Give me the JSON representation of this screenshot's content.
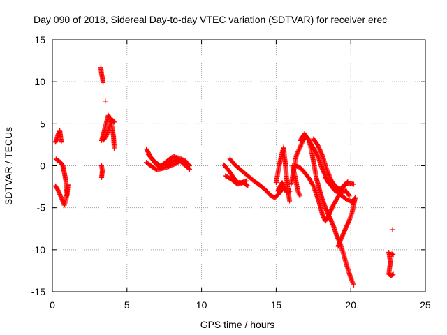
{
  "chart_data": {
    "type": "scatter",
    "title": "Day 090 of 2018, Sidereal Day-to-day VTEC variation (SDTVAR) for receiver erec",
    "xlabel": "GPS time / hours",
    "ylabel": "SDTVAR / TECUs",
    "xlim": [
      0,
      25
    ],
    "ylim": [
      -15,
      15
    ],
    "xticks": [
      0,
      5,
      10,
      15,
      20,
      25
    ],
    "yticks": [
      -15,
      -10,
      -5,
      0,
      5,
      10,
      15
    ],
    "grid": true,
    "marker": "plus",
    "marker_color": "#ff0000",
    "series": [
      {
        "name": "SDTVAR",
        "tracks": [
          [
            [
              0.2,
              2.8
            ],
            [
              0.3,
              3.2
            ],
            [
              0.4,
              3.8
            ],
            [
              0.5,
              4.2
            ],
            [
              0.55,
              3.5
            ],
            [
              0.6,
              2.8
            ]
          ],
          [
            [
              0.25,
              0.8
            ],
            [
              0.4,
              0.6
            ],
            [
              0.55,
              0.4
            ],
            [
              0.7,
              0.0
            ],
            [
              0.8,
              -0.8
            ],
            [
              0.9,
              -1.8
            ],
            [
              0.95,
              -2.8
            ],
            [
              1.0,
              -3.5
            ]
          ],
          [
            [
              0.2,
              -2.4
            ],
            [
              0.35,
              -2.8
            ],
            [
              0.5,
              -3.4
            ],
            [
              0.65,
              -4.0
            ],
            [
              0.8,
              -4.7
            ],
            [
              0.9,
              -4.2
            ],
            [
              1.0,
              -3.2
            ],
            [
              1.05,
              -2.2
            ]
          ],
          [
            [
              3.25,
              11.7
            ],
            [
              3.3,
              10.9
            ],
            [
              3.35,
              10.5
            ],
            [
              3.4,
              9.9
            ]
          ],
          [
            [
              3.3,
              3.0
            ],
            [
              3.45,
              4.0
            ],
            [
              3.6,
              5.0
            ],
            [
              3.75,
              6.0
            ],
            [
              3.9,
              5.5
            ],
            [
              4.0,
              4.6
            ],
            [
              4.1,
              3.5
            ],
            [
              4.15,
              2.0
            ]
          ],
          [
            [
              3.4,
              3.0
            ],
            [
              3.6,
              3.5
            ],
            [
              3.8,
              4.5
            ],
            [
              4.0,
              5.5
            ],
            [
              4.15,
              5.2
            ]
          ],
          [
            [
              3.3,
              0.0
            ],
            [
              3.35,
              -0.6
            ],
            [
              3.3,
              -1.4
            ]
          ],
          [
            [
              3.55,
              7.7
            ]
          ],
          [
            [
              6.3,
              2.0
            ],
            [
              6.6,
              1.0
            ],
            [
              6.9,
              0.3
            ],
            [
              7.2,
              -0.2
            ],
            [
              7.5,
              0.3
            ],
            [
              7.8,
              0.7
            ],
            [
              8.1,
              1.1
            ],
            [
              8.5,
              0.9
            ],
            [
              8.9,
              0.6
            ],
            [
              9.2,
              0.0
            ]
          ],
          [
            [
              6.3,
              0.4
            ],
            [
              6.6,
              0.0
            ],
            [
              7.0,
              -0.5
            ],
            [
              7.4,
              -0.3
            ],
            [
              7.8,
              -0.1
            ],
            [
              8.2,
              0.2
            ],
            [
              8.6,
              0.6
            ],
            [
              9.0,
              0.4
            ]
          ],
          [
            [
              6.4,
              1.4
            ],
            [
              6.8,
              0.6
            ],
            [
              7.2,
              0.0
            ],
            [
              7.6,
              0.0
            ],
            [
              8.0,
              0.5
            ],
            [
              8.4,
              0.8
            ],
            [
              8.8,
              0.2
            ],
            [
              9.2,
              -0.4
            ]
          ],
          [
            [
              11.5,
              0.1
            ],
            [
              11.8,
              -0.5
            ],
            [
              12.1,
              -1.3
            ],
            [
              12.4,
              -2.0
            ],
            [
              12.7,
              -2.0
            ],
            [
              13.0,
              -1.8
            ]
          ],
          [
            [
              11.6,
              -1.2
            ],
            [
              12.0,
              -1.6
            ],
            [
              12.4,
              -2.2
            ],
            [
              12.8,
              -2.0
            ],
            [
              13.1,
              -2.4
            ]
          ],
          [
            [
              11.9,
              0.8
            ],
            [
              12.3,
              0.0
            ],
            [
              12.7,
              -0.6
            ],
            [
              13.1,
              -1.2
            ],
            [
              13.5,
              -1.8
            ],
            [
              13.9,
              -2.3
            ],
            [
              14.3,
              -2.9
            ],
            [
              14.6,
              -3.5
            ],
            [
              14.9,
              -3.8
            ],
            [
              15.2,
              -3.3
            ],
            [
              15.5,
              -2.6
            ]
          ],
          [
            [
              15.0,
              -2.0
            ],
            [
              15.2,
              0.0
            ],
            [
              15.35,
              1.2
            ],
            [
              15.5,
              2.2
            ],
            [
              15.6,
              0.5
            ],
            [
              15.7,
              -1.5
            ],
            [
              15.8,
              -3.0
            ],
            [
              15.9,
              -4.2
            ]
          ],
          [
            [
              15.1,
              -3.0
            ],
            [
              15.4,
              -2.0
            ],
            [
              15.7,
              -3.2
            ],
            [
              15.95,
              -3.0
            ]
          ],
          [
            [
              16.0,
              -2.2
            ],
            [
              16.15,
              -0.8
            ],
            [
              16.35,
              1.2
            ],
            [
              16.55,
              2.0
            ],
            [
              16.75,
              2.8
            ],
            [
              16.95,
              3.5
            ],
            [
              17.15,
              3.2
            ],
            [
              17.35,
              2.5
            ],
            [
              17.6,
              1.8
            ],
            [
              17.85,
              0.9
            ],
            [
              18.05,
              -0.2
            ],
            [
              18.25,
              -1.0
            ],
            [
              18.5,
              -2.0
            ],
            [
              18.8,
              -2.5
            ],
            [
              19.1,
              -2.8
            ],
            [
              19.4,
              -3.1
            ],
            [
              19.7,
              -3.0
            ],
            [
              19.9,
              -3.6
            ]
          ],
          [
            [
              16.6,
              3.0
            ],
            [
              16.9,
              3.8
            ],
            [
              17.2,
              3.0
            ],
            [
              17.4,
              1.5
            ],
            [
              17.55,
              0.0
            ],
            [
              17.7,
              -1.5
            ],
            [
              17.9,
              -2.8
            ],
            [
              18.1,
              -4.0
            ],
            [
              18.35,
              -5.2
            ],
            [
              18.6,
              -6.2
            ],
            [
              18.85,
              -7.2
            ],
            [
              19.05,
              -8.3
            ],
            [
              19.3,
              -9.3
            ],
            [
              19.5,
              -10.4
            ],
            [
              19.7,
              -11.7
            ],
            [
              19.9,
              -12.8
            ],
            [
              20.05,
              -13.6
            ],
            [
              20.2,
              -14.2
            ]
          ],
          [
            [
              17.5,
              3.2
            ],
            [
              17.8,
              2.4
            ],
            [
              18.1,
              1.2
            ],
            [
              18.4,
              -0.5
            ],
            [
              18.7,
              -1.8
            ],
            [
              19.0,
              -2.5
            ],
            [
              19.3,
              -2.8
            ],
            [
              19.6,
              -2.2
            ],
            [
              19.9,
              -2.1
            ],
            [
              20.2,
              -2.2
            ]
          ],
          [
            [
              16.1,
              0.0
            ],
            [
              16.3,
              -1.5
            ],
            [
              16.45,
              -3.0
            ],
            [
              16.6,
              -3.6
            ]
          ],
          [
            [
              16.3,
              0.0
            ],
            [
              16.6,
              -0.2
            ],
            [
              16.9,
              -0.8
            ],
            [
              17.2,
              -1.5
            ],
            [
              17.5,
              -2.4
            ],
            [
              17.7,
              -3.4
            ],
            [
              17.9,
              -4.5
            ],
            [
              18.1,
              -5.8
            ],
            [
              18.3,
              -6.6
            ],
            [
              18.55,
              -5.8
            ],
            [
              18.8,
              -4.8
            ],
            [
              19.05,
              -4.0
            ],
            [
              19.3,
              -3.2
            ],
            [
              19.55,
              -2.4
            ],
            [
              19.8,
              -1.9
            ]
          ],
          [
            [
              18.3,
              -1.4
            ],
            [
              18.6,
              -2.2
            ],
            [
              18.9,
              -2.9
            ],
            [
              19.3,
              -3.4
            ],
            [
              19.7,
              -4.0
            ],
            [
              20.1,
              -4.3
            ],
            [
              20.3,
              -3.8
            ],
            [
              20.1,
              -5.5
            ],
            [
              19.9,
              -6.5
            ],
            [
              19.65,
              -7.5
            ],
            [
              19.4,
              -8.5
            ],
            [
              19.15,
              -9.6
            ]
          ],
          [
            [
              22.55,
              -10.3
            ],
            [
              22.6,
              -10.8
            ],
            [
              22.65,
              -11.5
            ],
            [
              22.6,
              -12.2
            ],
            [
              22.55,
              -12.9
            ],
            [
              22.7,
              -13.1
            ],
            [
              22.85,
              -12.9
            ]
          ],
          [
            [
              22.75,
              -10.5
            ],
            [
              22.85,
              -10.6
            ]
          ],
          [
            [
              22.8,
              -7.6
            ]
          ]
        ]
      }
    ]
  }
}
